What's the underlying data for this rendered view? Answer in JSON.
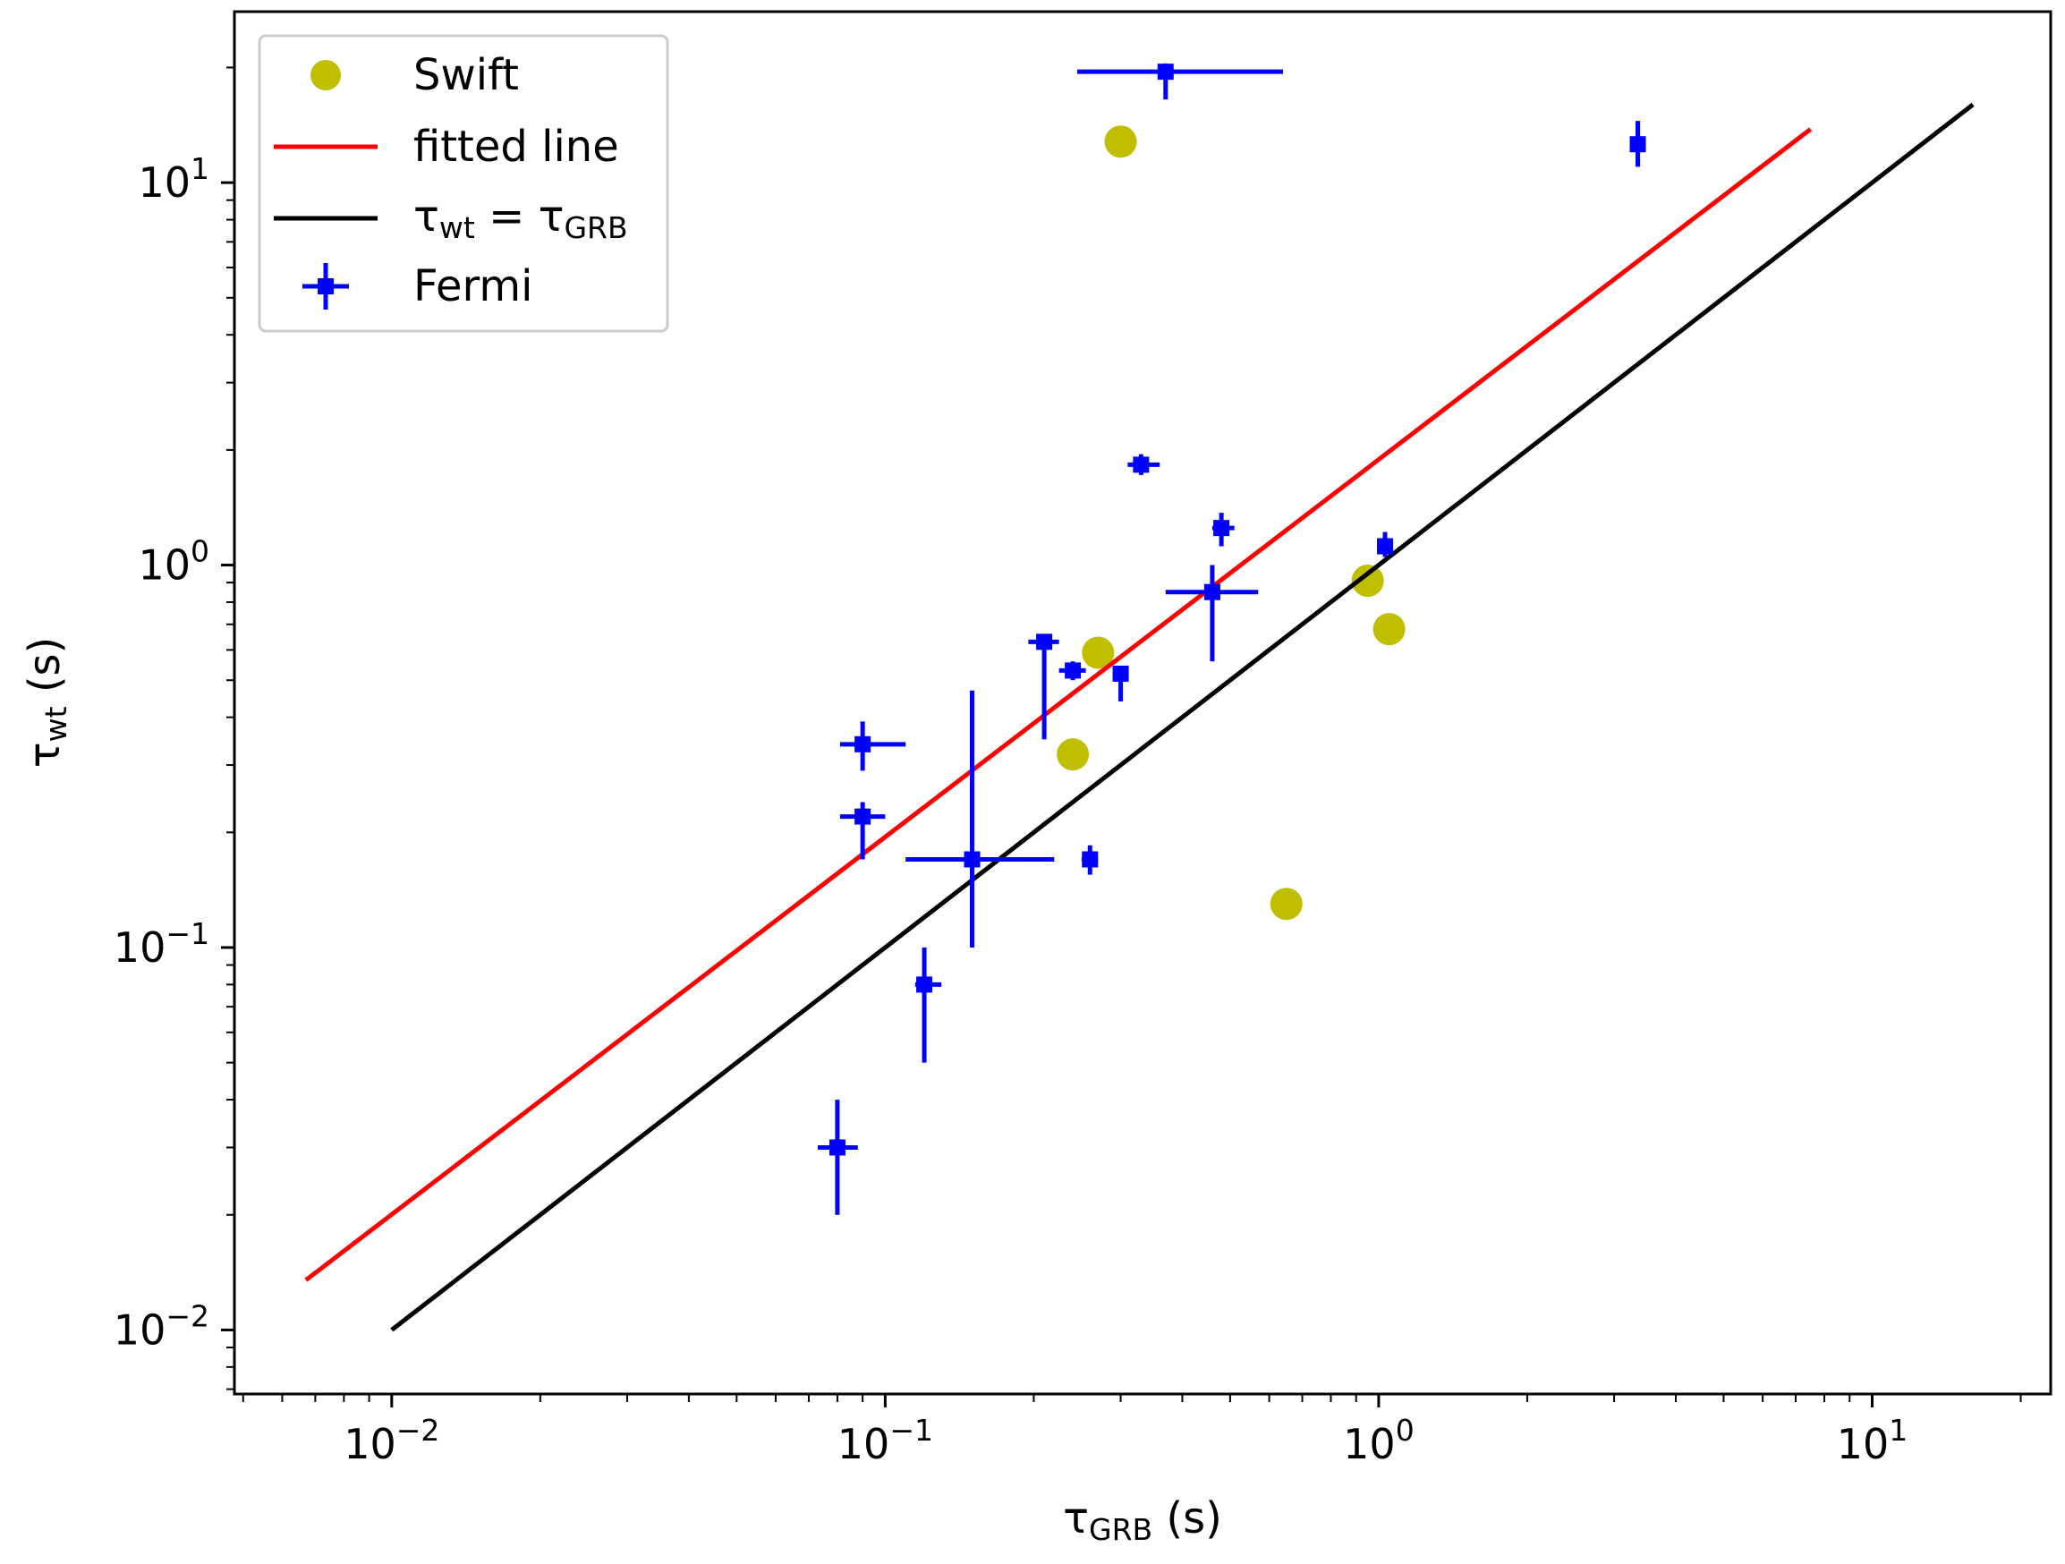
{
  "chart_data": {
    "type": "scatter",
    "xscale": "log",
    "yscale": "log",
    "xlim": [
      0.0048,
      23.0
    ],
    "ylim": [
      0.0068,
      28.0
    ],
    "xlabel": "τGRB (s)",
    "xlabel_parts": {
      "symbol": "τ",
      "sub": "GRB",
      "unit": " (s)"
    },
    "ylabel": "τwt (s)",
    "ylabel_parts": {
      "symbol": "τ",
      "sub": "wt",
      "unit": " (s)"
    },
    "x_ticks": [
      {
        "value": 0.01,
        "base": "10",
        "exp": "−2"
      },
      {
        "value": 0.1,
        "base": "10",
        "exp": "−1"
      },
      {
        "value": 1,
        "base": "10",
        "exp": "0"
      },
      {
        "value": 10,
        "base": "10",
        "exp": "1"
      }
    ],
    "y_ticks": [
      {
        "value": 0.01,
        "base": "10",
        "exp": "−2"
      },
      {
        "value": 0.1,
        "base": "10",
        "exp": "−1"
      },
      {
        "value": 1,
        "base": "10",
        "exp": "0"
      },
      {
        "value": 10,
        "base": "10",
        "exp": "1"
      }
    ],
    "legend_position": "top-left",
    "series": [
      {
        "name": "Swift",
        "kind": "points",
        "color": "#bfbf00",
        "points": [
          {
            "x": 0.3,
            "y": 12.8
          },
          {
            "x": 0.27,
            "y": 0.59
          },
          {
            "x": 0.24,
            "y": 0.32
          },
          {
            "x": 0.95,
            "y": 0.91
          },
          {
            "x": 1.05,
            "y": 0.68
          },
          {
            "x": 0.65,
            "y": 0.13
          }
        ]
      },
      {
        "name": "fitted line",
        "kind": "line",
        "color": "#ff0000",
        "points": [
          {
            "x": 0.0067,
            "y": 0.0135
          },
          {
            "x": 7.5,
            "y": 13.8
          }
        ]
      },
      {
        "name": "τwt = τGRB",
        "legend_parts": {
          "a": "τ",
          "a_sub": "wt",
          "eq": " = ",
          "b": "τ",
          "b_sub": "GRB"
        },
        "kind": "line",
        "color": "#000000",
        "points": [
          {
            "x": 0.01,
            "y": 0.01
          },
          {
            "x": 16,
            "y": 16
          }
        ]
      },
      {
        "name": "Fermi",
        "kind": "errorbar",
        "color": "#0000ff",
        "points": [
          {
            "x": 0.37,
            "y": 19.5,
            "xlo": 0.245,
            "xhi": 0.64,
            "ylo": 16.5,
            "yhi": 20.5
          },
          {
            "x": 3.35,
            "y": 12.6,
            "xlo": 3.25,
            "xhi": 3.45,
            "ylo": 11.0,
            "yhi": 14.5
          },
          {
            "x": 0.33,
            "y": 1.83,
            "xlo": 0.31,
            "xhi": 0.36,
            "ylo": 1.72,
            "yhi": 1.95
          },
          {
            "x": 0.48,
            "y": 1.25,
            "xlo": 0.46,
            "xhi": 0.51,
            "ylo": 1.12,
            "yhi": 1.37
          },
          {
            "x": 1.03,
            "y": 1.12,
            "xlo": 1.01,
            "xhi": 1.05,
            "ylo": 1.05,
            "yhi": 1.22
          },
          {
            "x": 0.46,
            "y": 0.85,
            "xlo": 0.37,
            "xhi": 0.57,
            "ylo": 0.56,
            "yhi": 1.0
          },
          {
            "x": 0.21,
            "y": 0.63,
            "xlo": 0.195,
            "xhi": 0.225,
            "ylo": 0.35,
            "yhi": 0.65
          },
          {
            "x": 0.24,
            "y": 0.53,
            "xlo": 0.225,
            "xhi": 0.255,
            "ylo": 0.5,
            "yhi": 0.56
          },
          {
            "x": 0.3,
            "y": 0.52,
            "xlo": 0.29,
            "xhi": 0.31,
            "ylo": 0.44,
            "yhi": 0.54
          },
          {
            "x": 0.09,
            "y": 0.34,
            "xlo": 0.081,
            "xhi": 0.11,
            "ylo": 0.29,
            "yhi": 0.39
          },
          {
            "x": 0.09,
            "y": 0.22,
            "xlo": 0.081,
            "xhi": 0.1,
            "ylo": 0.17,
            "yhi": 0.24
          },
          {
            "x": 0.15,
            "y": 0.17,
            "xlo": 0.11,
            "xhi": 0.22,
            "ylo": 0.1,
            "yhi": 0.47
          },
          {
            "x": 0.26,
            "y": 0.17,
            "xlo": 0.25,
            "xhi": 0.27,
            "ylo": 0.155,
            "yhi": 0.185
          },
          {
            "x": 0.12,
            "y": 0.08,
            "xlo": 0.115,
            "xhi": 0.13,
            "ylo": 0.05,
            "yhi": 0.1
          },
          {
            "x": 0.08,
            "y": 0.03,
            "xlo": 0.073,
            "xhi": 0.088,
            "ylo": 0.02,
            "yhi": 0.04
          }
        ]
      }
    ]
  }
}
